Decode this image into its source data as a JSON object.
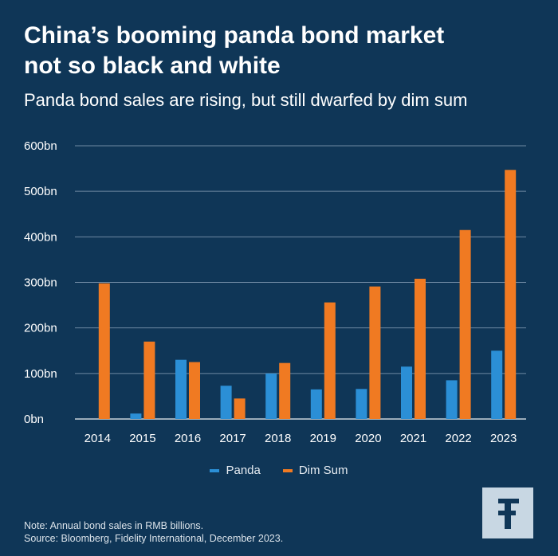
{
  "title_line1": "China’s booming panda bond market",
  "title_line2": "not so black and white",
  "subtitle": "Panda bond sales are rising, but still dwarfed by dim sum",
  "legend": [
    {
      "label": "Panda",
      "color": "#2b8fd6"
    },
    {
      "label": "Dim Sum",
      "color": "#f07a22"
    }
  ],
  "note_line1": "Note: Annual bond sales in RMB billions.",
  "note_line2": "Source: Bloomberg, Fidelity International, December 2023.",
  "logo_icon": "fidelity-f-logo-icon",
  "chart_data": {
    "type": "bar",
    "categories": [
      "2014",
      "2015",
      "2016",
      "2017",
      "2018",
      "2019",
      "2020",
      "2021",
      "2022",
      "2023"
    ],
    "series": [
      {
        "name": "Panda",
        "color": "#2b8fd6",
        "values": [
          0,
          12,
          130,
          73,
          100,
          65,
          66,
          115,
          85,
          150
        ]
      },
      {
        "name": "Dim Sum",
        "color": "#f07a22",
        "values": [
          298,
          170,
          125,
          45,
          123,
          256,
          291,
          308,
          415,
          547
        ]
      }
    ],
    "yticks": [
      "0bn",
      "100bn",
      "200bn",
      "300bn",
      "400bn",
      "500bn",
      "600bn"
    ],
    "ylim": [
      0,
      600
    ],
    "grid": true,
    "legend_position": "bottom"
  }
}
